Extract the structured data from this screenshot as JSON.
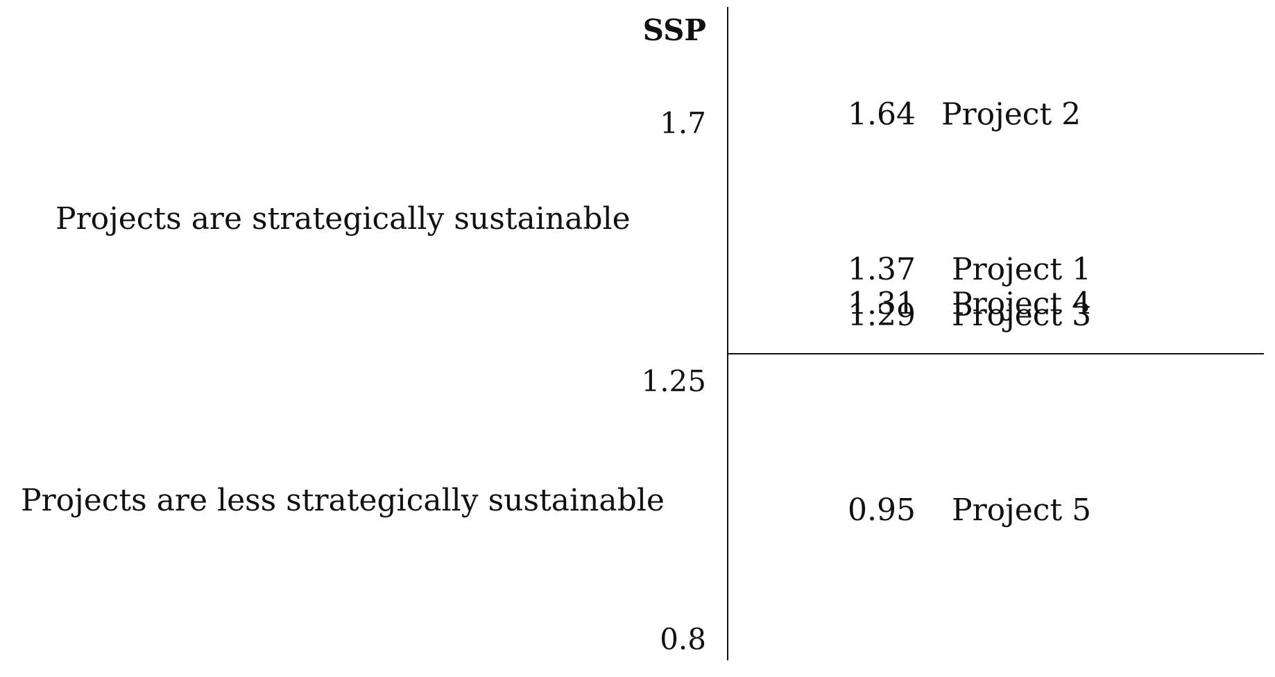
{
  "chart_data": {
    "type": "scatter",
    "title": "",
    "ylabel": "SSP",
    "xlabel": "",
    "ylim": [
      0.8,
      1.7
    ],
    "threshold": 1.25,
    "y_ticks": [
      {
        "value": 1.7,
        "label": "1.7"
      },
      {
        "value": 1.25,
        "label": "1.25"
      },
      {
        "value": 0.8,
        "label": "0.8"
      }
    ],
    "regions": [
      {
        "label": "Projects are strategically sustainable",
        "position": "above-threshold"
      },
      {
        "label": "Projects are less strategically sustainable",
        "position": "below-threshold"
      }
    ],
    "points": [
      {
        "value": 1.64,
        "value_label": "1.64",
        "name": "Project 2"
      },
      {
        "value": 1.37,
        "value_label": "1.37",
        "name": "Project 1"
      },
      {
        "value": 1.31,
        "value_label": "1.31",
        "name": "Project 4"
      },
      {
        "value": 1.29,
        "value_label": "1.29",
        "name": "Project 3"
      },
      {
        "value": 0.95,
        "value_label": "0.95",
        "name": "Project 5"
      }
    ],
    "grid": false,
    "legend": "none"
  }
}
